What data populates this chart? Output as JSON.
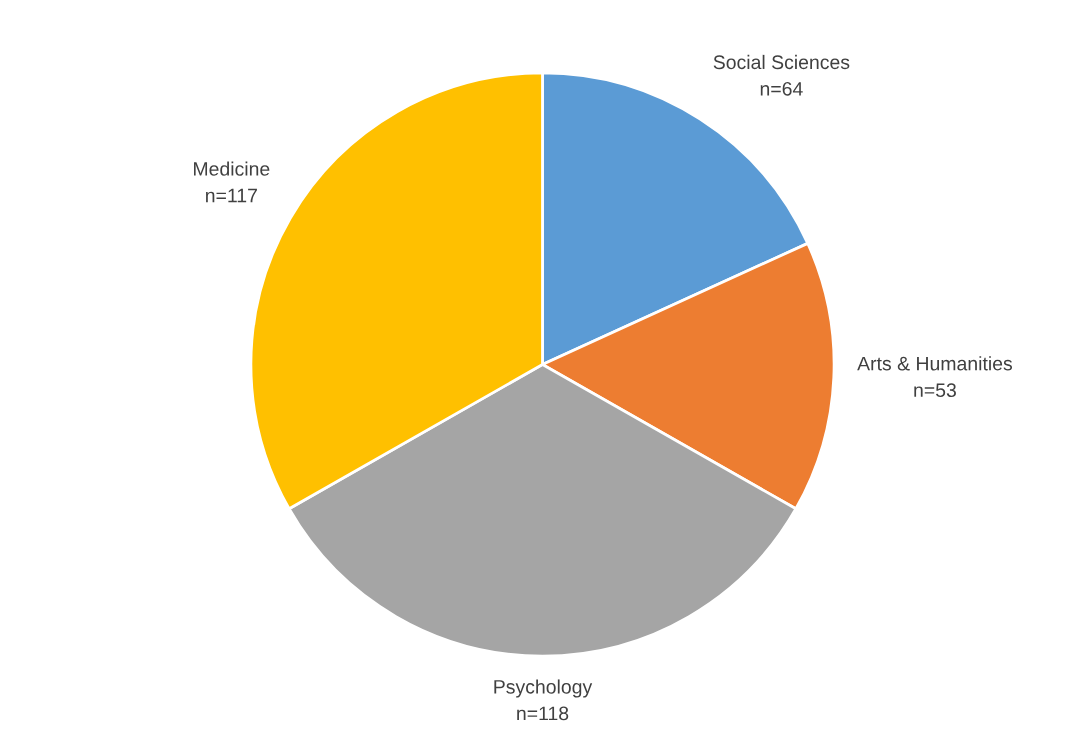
{
  "chart_data": {
    "type": "pie",
    "categories": [
      "Social Sciences",
      "Arts & Humanities",
      "Psychology",
      "Medicine"
    ],
    "values": [
      64,
      53,
      118,
      117
    ],
    "value_labels": [
      "n=64",
      "n=53",
      "n=118",
      "n=117"
    ],
    "colors": [
      "#5b9bd5",
      "#ed7d31",
      "#a5a5a5",
      "#ffc000"
    ],
    "legend": false
  }
}
